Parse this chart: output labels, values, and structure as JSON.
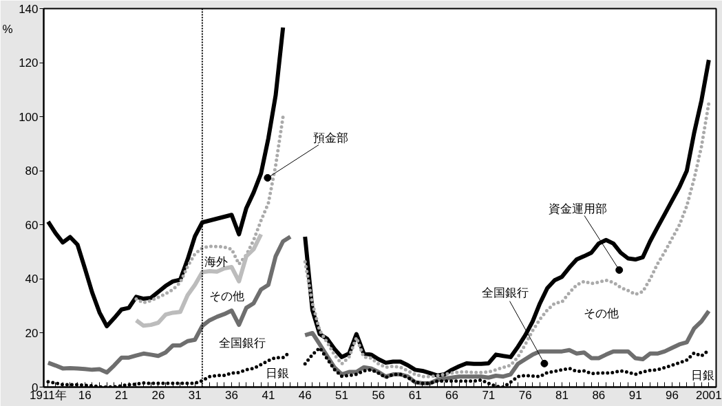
{
  "chart_data": {
    "type": "line",
    "ylabel": "%",
    "xlim": [
      1910.4,
      2002
    ],
    "ylim": [
      0,
      140
    ],
    "yticks": [
      0,
      20,
      40,
      60,
      80,
      100,
      120,
      140
    ],
    "xticks": [
      {
        "value": 1911,
        "label": "1911年"
      },
      {
        "value": 1912,
        "label": null
      },
      {
        "value": 1913,
        "label": null
      },
      {
        "value": 1914,
        "label": null
      },
      {
        "value": 1915,
        "label": null
      },
      {
        "value": 1916,
        "label": "16"
      },
      {
        "value": 1917,
        "label": null
      },
      {
        "value": 1918,
        "label": null
      },
      {
        "value": 1919,
        "label": null
      },
      {
        "value": 1920,
        "label": null
      },
      {
        "value": 1921,
        "label": "21"
      },
      {
        "value": 1922,
        "label": null
      },
      {
        "value": 1923,
        "label": null
      },
      {
        "value": 1924,
        "label": null
      },
      {
        "value": 1925,
        "label": null
      },
      {
        "value": 1926,
        "label": "26"
      },
      {
        "value": 1927,
        "label": null
      },
      {
        "value": 1928,
        "label": null
      },
      {
        "value": 1929,
        "label": null
      },
      {
        "value": 1930,
        "label": null
      },
      {
        "value": 1931,
        "label": "31"
      },
      {
        "value": 1932,
        "label": null
      },
      {
        "value": 1933,
        "label": null
      },
      {
        "value": 1934,
        "label": null
      },
      {
        "value": 1935,
        "label": null
      },
      {
        "value": 1936,
        "label": "36"
      },
      {
        "value": 1937,
        "label": null
      },
      {
        "value": 1938,
        "label": null
      },
      {
        "value": 1939,
        "label": null
      },
      {
        "value": 1940,
        "label": null
      },
      {
        "value": 1941,
        "label": "41"
      },
      {
        "value": 1942,
        "label": null
      },
      {
        "value": 1943,
        "label": null
      },
      {
        "value": 1944,
        "label": null
      },
      {
        "value": 1945,
        "label": null
      },
      {
        "value": 1946,
        "label": "46"
      },
      {
        "value": 1947,
        "label": null
      },
      {
        "value": 1948,
        "label": null
      },
      {
        "value": 1949,
        "label": null
      },
      {
        "value": 1950,
        "label": null
      },
      {
        "value": 1951,
        "label": "51"
      },
      {
        "value": 1952,
        "label": null
      },
      {
        "value": 1953,
        "label": null
      },
      {
        "value": 1954,
        "label": null
      },
      {
        "value": 1955,
        "label": null
      },
      {
        "value": 1956,
        "label": "56"
      },
      {
        "value": 1957,
        "label": null
      },
      {
        "value": 1958,
        "label": null
      },
      {
        "value": 1959,
        "label": null
      },
      {
        "value": 1960,
        "label": null
      },
      {
        "value": 1961,
        "label": "61"
      },
      {
        "value": 1962,
        "label": null
      },
      {
        "value": 1963,
        "label": null
      },
      {
        "value": 1964,
        "label": null
      },
      {
        "value": 1965,
        "label": null
      },
      {
        "value": 1966,
        "label": "66"
      },
      {
        "value": 1967,
        "label": null
      },
      {
        "value": 1968,
        "label": null
      },
      {
        "value": 1969,
        "label": null
      },
      {
        "value": 1970,
        "label": null
      },
      {
        "value": 1971,
        "label": "71"
      },
      {
        "value": 1972,
        "label": null
      },
      {
        "value": 1973,
        "label": null
      },
      {
        "value": 1974,
        "label": null
      },
      {
        "value": 1975,
        "label": null
      },
      {
        "value": 1976,
        "label": "76"
      },
      {
        "value": 1977,
        "label": null
      },
      {
        "value": 1978,
        "label": null
      },
      {
        "value": 1979,
        "label": null
      },
      {
        "value": 1980,
        "label": null
      },
      {
        "value": 1981,
        "label": "81"
      },
      {
        "value": 1982,
        "label": null
      },
      {
        "value": 1983,
        "label": null
      },
      {
        "value": 1984,
        "label": null
      },
      {
        "value": 1985,
        "label": null
      },
      {
        "value": 1986,
        "label": "86"
      },
      {
        "value": 1987,
        "label": null
      },
      {
        "value": 1988,
        "label": null
      },
      {
        "value": 1989,
        "label": null
      },
      {
        "value": 1990,
        "label": null
      },
      {
        "value": 1991,
        "label": "91"
      },
      {
        "value": 1992,
        "label": null
      },
      {
        "value": 1993,
        "label": null
      },
      {
        "value": 1994,
        "label": null
      },
      {
        "value": 1995,
        "label": null
      },
      {
        "value": 1996,
        "label": "96"
      },
      {
        "value": 1997,
        "label": null
      },
      {
        "value": 1998,
        "label": null
      },
      {
        "value": 1999,
        "label": null
      },
      {
        "value": 2000,
        "label": null
      },
      {
        "value": 2001,
        "label": "2001"
      }
    ],
    "grid": false,
    "ref_lines": [
      {
        "axis": "x",
        "value": 1932,
        "label": null,
        "color": "#000000",
        "line_style": "dotted"
      }
    ],
    "series": [
      {
        "color": "#000000",
        "line_style": "solid",
        "x": [
          1911,
          1912,
          1913,
          1914,
          1915,
          1916,
          1917,
          1918,
          1919,
          1920,
          1921,
          1922,
          1923,
          1924,
          1925,
          1926,
          1927,
          1928,
          1929,
          1930,
          1931,
          1932,
          1933,
          1934,
          1935,
          1936,
          1937,
          1938,
          1939,
          1940,
          1941,
          1942,
          1943
        ],
        "values": [
          61.2,
          57,
          53.5,
          55.5,
          52.7,
          44,
          35,
          27.6,
          22.5,
          25.5,
          28.7,
          29.3,
          33.4,
          32.7,
          33,
          35.2,
          37.4,
          39.1,
          39.7,
          47.2,
          55.8,
          60.9,
          61.6,
          62.3,
          63,
          63.7,
          56.5,
          66.2,
          72,
          79,
          92,
          108,
          133
        ]
      },
      {
        "color": "#aaaaaa",
        "line_style": "dotted",
        "x": [
          1923,
          1924,
          1925,
          1926,
          1927,
          1928,
          1929,
          1930,
          1931,
          1932,
          1933,
          1934,
          1935,
          1936,
          1937,
          1938,
          1939,
          1940,
          1941,
          1942,
          1943
        ],
        "values": [
          32.6,
          31.2,
          32,
          33.2,
          34.5,
          36.1,
          38.7,
          44.6,
          49.3,
          51.4,
          52.1,
          52,
          51.8,
          51,
          45.5,
          48.9,
          54.4,
          61.6,
          68,
          82,
          100
        ]
      },
      {
        "color": "#bcbcbc",
        "line_style": "solid",
        "x": [
          1923,
          1924,
          1925,
          1926,
          1927,
          1928,
          1929,
          1930,
          1931,
          1932,
          1933,
          1934,
          1935,
          1936,
          1937,
          1938,
          1939,
          1940
        ],
        "values": [
          24.7,
          22.7,
          23,
          23.8,
          26.8,
          27.5,
          27.8,
          34,
          37.8,
          42.5,
          42.9,
          42.7,
          43.9,
          44.4,
          39.1,
          48.4,
          51,
          56.5
        ]
      },
      {
        "color": "#6e6e6e",
        "line_style": "solid",
        "x": [
          1911,
          1912,
          1913,
          1914,
          1915,
          1916,
          1917,
          1918,
          1919,
          1920,
          1921,
          1922,
          1923,
          1924,
          1925,
          1926,
          1927,
          1928,
          1929,
          1930,
          1931,
          1932,
          1933,
          1934,
          1935,
          1936,
          1937,
          1938,
          1939,
          1940,
          1941,
          1942,
          1943,
          1944
        ],
        "values": [
          9,
          8,
          6.9,
          7,
          6.9,
          6.7,
          6.4,
          6.6,
          5.4,
          8,
          10.9,
          10.9,
          11.7,
          12.4,
          12,
          11.5,
          12.8,
          15.4,
          15.4,
          17,
          17.5,
          22.6,
          24.7,
          26,
          27,
          28.3,
          23,
          29.3,
          31,
          36.1,
          37.8,
          48.4,
          53.9,
          55.6
        ]
      },
      {
        "color": "#000000",
        "line_style": "dotted",
        "x": [
          1911,
          1912,
          1913,
          1914,
          1915,
          1916,
          1917,
          1918,
          1919,
          1920,
          1921,
          1922,
          1923,
          1924,
          1925,
          1926,
          1927,
          1928,
          1929,
          1930,
          1931,
          1932,
          1933,
          1934,
          1935,
          1936,
          1937,
          1938,
          1939,
          1940,
          1941,
          1942,
          1943,
          1944
        ],
        "values": [
          2,
          1.5,
          0.9,
          0.9,
          0.9,
          0.7,
          0.5,
          0.1,
          0,
          0.1,
          0.5,
          0.9,
          1.1,
          1.5,
          1.4,
          1.4,
          1.4,
          1.4,
          1.4,
          1.4,
          1.4,
          2.4,
          3.9,
          4.3,
          4.3,
          5.2,
          5.4,
          6.4,
          6.9,
          8.3,
          9.8,
          10.9,
          10.9,
          13.1
        ]
      },
      {
        "color": "#000000",
        "line_style": "solid",
        "x": [
          1946,
          1947,
          1948,
          1949,
          1950,
          1951,
          1952,
          1953,
          1954,
          1955,
          1956,
          1957,
          1958,
          1959,
          1960,
          1961,
          1962,
          1963,
          1964,
          1965,
          1966,
          1967,
          1968,
          1969,
          1970,
          1971,
          1972,
          1973,
          1974,
          1975,
          1976,
          1977,
          1978,
          1979,
          1980,
          1981,
          1982,
          1983,
          1984,
          1985,
          1986,
          1987,
          1988,
          1989,
          1990,
          1991,
          1992,
          1993,
          1994,
          1995,
          1996,
          1997,
          1998,
          1999,
          2000,
          2001
        ],
        "values": [
          55.6,
          28.5,
          19.6,
          17.9,
          14.1,
          11.1,
          12.4,
          19.6,
          12.4,
          12,
          10.3,
          9,
          9.4,
          9.4,
          8.1,
          6.4,
          6,
          5.2,
          4.3,
          4.7,
          6.4,
          7.7,
          8.8,
          8.6,
          8.6,
          8.8,
          12,
          11.5,
          11.1,
          14.9,
          19.2,
          24.3,
          31,
          36.6,
          39.5,
          40.8,
          44.2,
          47.2,
          48.4,
          49.7,
          53.1,
          54.4,
          53.1,
          49.7,
          47.6,
          47.2,
          48,
          53.9,
          59,
          64,
          69,
          74,
          80,
          94,
          106,
          121
        ]
      },
      {
        "color": "#aaaaaa",
        "line_style": "dotted",
        "x": [
          1946,
          1947,
          1948,
          1949,
          1950,
          1951,
          1952,
          1953,
          1954,
          1955,
          1956,
          1957,
          1958,
          1959,
          1960,
          1961,
          1962,
          1963,
          1964,
          1965,
          1966,
          1967,
          1968,
          1969,
          1970,
          1971,
          1972,
          1973,
          1974,
          1975,
          1976,
          1977,
          1978,
          1979,
          1980,
          1981,
          1982,
          1983,
          1984,
          1985,
          1986,
          1987,
          1988,
          1989,
          1990,
          1991,
          1992,
          1993,
          1994,
          1995,
          1996,
          1997,
          1998,
          1999,
          2000,
          2001
        ],
        "values": [
          46.3,
          31,
          20.9,
          16.6,
          12,
          8.6,
          11.1,
          18.3,
          11.1,
          10.7,
          8.6,
          7.3,
          7.7,
          7.3,
          6,
          4.7,
          3.9,
          3.9,
          4.2,
          4.7,
          5.2,
          5.6,
          5.6,
          5.4,
          5.4,
          5.6,
          6.4,
          7.3,
          8.1,
          11.1,
          15.8,
          20.9,
          25.1,
          28.5,
          31,
          31.5,
          34.9,
          37.8,
          39.1,
          38.3,
          38.8,
          39.5,
          38.7,
          36.8,
          35.7,
          34.3,
          35.3,
          39.9,
          45.5,
          50,
          55,
          60,
          67,
          77,
          89,
          105
        ]
      },
      {
        "color": "#6e6e6e",
        "line_style": "solid",
        "x": [
          1946,
          1947,
          1948,
          1949,
          1950,
          1951,
          1952,
          1953,
          1954,
          1955,
          1956,
          1957,
          1958,
          1959,
          1960,
          1961,
          1962,
          1963,
          1964,
          1965,
          1966,
          1967,
          1968,
          1969,
          1970,
          1971,
          1972,
          1973,
          1974,
          1975,
          1976,
          1977,
          1978,
          1979,
          1980,
          1981,
          1982,
          1983,
          1984,
          1985,
          1986,
          1987,
          1988,
          1989,
          1990,
          1991,
          1992,
          1993,
          1994,
          1995,
          1996,
          1997,
          1998,
          1999,
          2000,
          2001
        ],
        "values": [
          19.2,
          20,
          15.8,
          11.5,
          7.3,
          4.7,
          5.6,
          5.6,
          7.3,
          6.9,
          5.6,
          3.9,
          4.7,
          4.7,
          3.9,
          1.8,
          1.4,
          1.4,
          2.6,
          3.1,
          3.5,
          3.9,
          3.9,
          3.9,
          3.9,
          3.5,
          4.2,
          3.9,
          4.7,
          8.6,
          10.3,
          12,
          13.2,
          13.2,
          13.2,
          13.2,
          13.7,
          12.4,
          12.8,
          10.7,
          10.7,
          12,
          13.2,
          13.2,
          13.2,
          10.7,
          10.3,
          12.4,
          12.4,
          13.2,
          14.5,
          15.8,
          16.6,
          21.7,
          24.3,
          28.1
        ]
      },
      {
        "color": "#000000",
        "line_style": "dotted",
        "x": [
          1946,
          1947,
          1948,
          1949,
          1950,
          1951,
          1952,
          1953,
          1954,
          1955,
          1956,
          1957,
          1958,
          1959,
          1960,
          1961,
          1962,
          1963,
          1964,
          1965,
          1966,
          1967,
          1968,
          1969,
          1970,
          1971,
          1972,
          1973,
          1974,
          1975,
          1976,
          1977,
          1978,
          1979,
          1980,
          1981,
          1982,
          1983,
          1984,
          1985,
          1986,
          1987,
          1988,
          1989,
          1990,
          1991,
          1992,
          1993,
          1994,
          1995,
          1996,
          1997,
          1998,
          1999,
          2000,
          2001
        ],
        "values": [
          8.6,
          12,
          14.5,
          10.5,
          6.5,
          4,
          4.3,
          4.7,
          6,
          6.4,
          5.2,
          3.5,
          4.7,
          4.7,
          3.5,
          1.8,
          1.4,
          1.4,
          2.2,
          2.2,
          2.2,
          2.2,
          2.2,
          2.2,
          2.6,
          1.4,
          0.3,
          0,
          1.8,
          3.9,
          4.3,
          4.1,
          3.9,
          5.4,
          5.8,
          6.4,
          6.9,
          5.8,
          6,
          5,
          5.2,
          5.2,
          5.4,
          6,
          5.5,
          4.7,
          5.6,
          6.2,
          6.4,
          7.2,
          8.1,
          9,
          10,
          12.6,
          11.5,
          13.7
        ]
      }
    ],
    "annotations": [
      {
        "text": "預金部",
        "x": 1940.9,
        "y": 77.4
      },
      "海外",
      "その他",
      "全国銀行",
      "日銀",
      {
        "text": "資金運用部",
        "x": 1988.8,
        "y": 43.3
      },
      {
        "text": "全国銀行",
        "x": 1978.6,
        "y": 8.7
      },
      "その他",
      "日銀"
    ]
  }
}
